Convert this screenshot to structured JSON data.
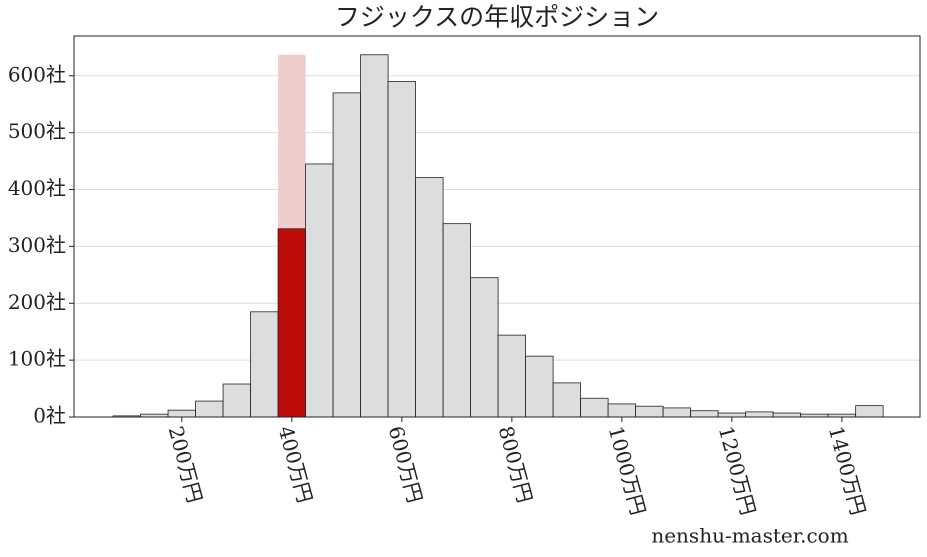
{
  "chart_data": {
    "type": "histogram",
    "title": "フジックスの年収ポジション",
    "bins": [
      75,
      125,
      175,
      225,
      275,
      325,
      375,
      425,
      475,
      525,
      575,
      625,
      675,
      725,
      775,
      825,
      875,
      925,
      975,
      1025,
      1075,
      1125,
      1175,
      1225,
      1275,
      1325,
      1375,
      1425,
      1475
    ],
    "values": [
      2,
      5,
      12,
      28,
      58,
      185,
      331,
      445,
      570,
      637,
      590,
      421,
      340,
      245,
      144,
      107,
      60,
      33,
      23,
      19,
      16,
      11,
      7,
      9,
      7,
      5,
      5,
      20
    ],
    "color": "#dcdddf",
    "highlight_index": 6,
    "highlight_color": "#c00b0b",
    "highlight_band_color": "#f0cbcc",
    "xlim": [
      4,
      1542
    ],
    "ylim": [
      0,
      670
    ],
    "xticks": [
      {
        "value": 200,
        "label": "200万円"
      },
      {
        "value": 400,
        "label": "400万円"
      },
      {
        "value": 600,
        "label": "600万円"
      },
      {
        "value": 800,
        "label": "800万円"
      },
      {
        "value": 1000,
        "label": "1000万円"
      },
      {
        "value": 1200,
        "label": "1200万円"
      },
      {
        "value": 1400,
        "label": "1400万円"
      }
    ],
    "yticks": [
      {
        "value": 0,
        "label": "0社"
      },
      {
        "value": 100,
        "label": "100社"
      },
      {
        "value": 200,
        "label": "200社"
      },
      {
        "value": 300,
        "label": "300社"
      },
      {
        "value": 400,
        "label": "400社"
      },
      {
        "value": 500,
        "label": "500社"
      },
      {
        "value": 600,
        "label": "600社"
      }
    ],
    "grid": true,
    "watermark": "nenshu-master.com"
  }
}
